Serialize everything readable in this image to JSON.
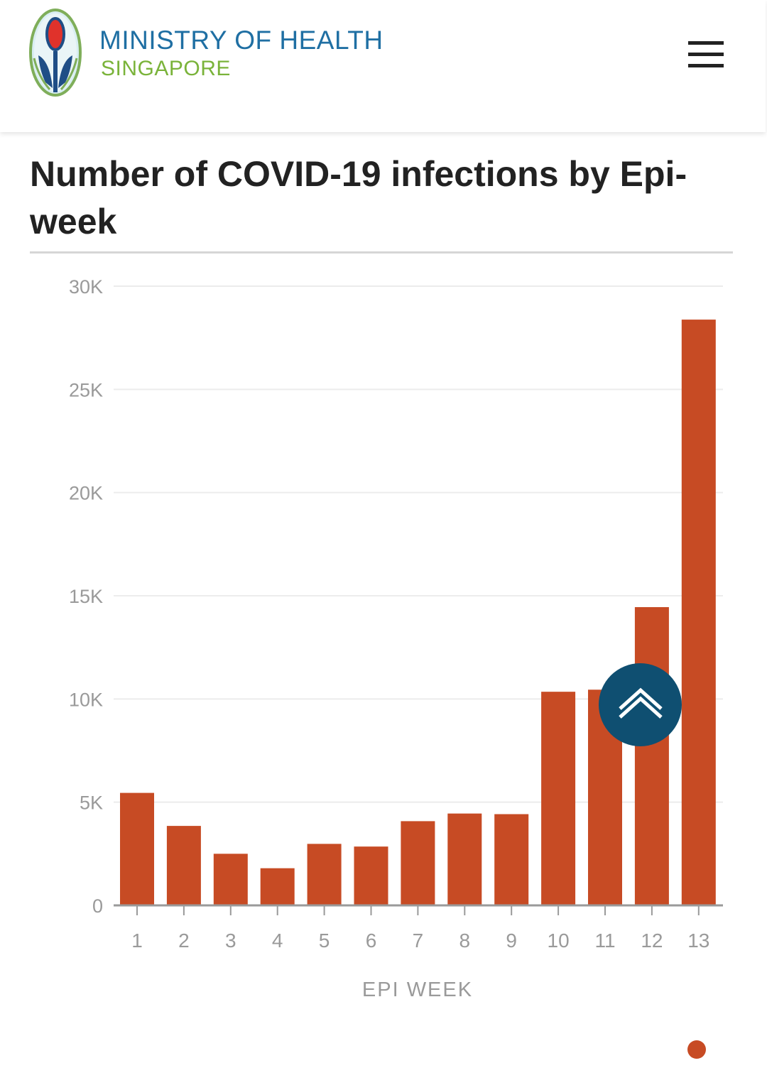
{
  "header": {
    "brand_title": "MINISTRY OF HEALTH",
    "brand_subtitle": "SINGAPORE",
    "logo_icon": "moh-emblem-icon",
    "menu_icon": "hamburger-menu-icon"
  },
  "colors": {
    "brand_blue": "#1f6fa3",
    "brand_green": "#7ab33a",
    "bar": "#c74b24",
    "scroll_button": "#0f4f71"
  },
  "chart_data": {
    "type": "bar",
    "title": "Number of COVID-19 infections by Epi-week",
    "xlabel": "EPI WEEK",
    "ylabel": "",
    "categories": [
      "1",
      "2",
      "3",
      "4",
      "5",
      "6",
      "7",
      "8",
      "9",
      "10",
      "11",
      "12",
      "13"
    ],
    "values": [
      5450,
      3850,
      2500,
      1800,
      2980,
      2850,
      4080,
      4450,
      4420,
      10350,
      10450,
      14450,
      28380
    ],
    "ylim": [
      0,
      30000
    ],
    "yticks": [
      0,
      5000,
      10000,
      15000,
      20000,
      25000,
      30000
    ],
    "ytick_labels": [
      "0",
      "5K",
      "10K",
      "15K",
      "20K",
      "25K",
      "30K"
    ],
    "grid": true,
    "legend": "none"
  },
  "scroll_top": {
    "icon": "chevron-up-icon"
  },
  "pager": {
    "active_index": 1
  }
}
